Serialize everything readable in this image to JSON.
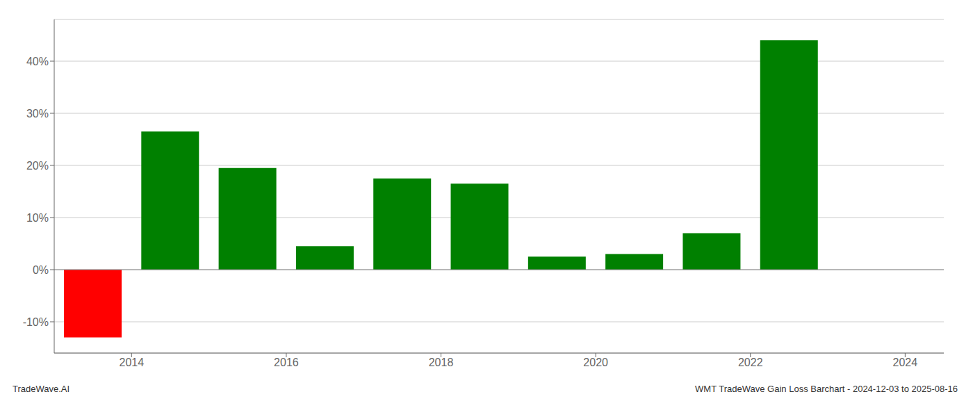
{
  "chart_data": {
    "type": "bar",
    "title": "WMT TradeWave Gain Loss Barchart - 2024-12-03 to 2025-08-16",
    "annotations": [
      "TradeWave.AI"
    ],
    "x": [
      2013.5,
      2014.5,
      2015.5,
      2016.5,
      2017.5,
      2018.5,
      2019.5,
      2020.5,
      2021.5,
      2022.5
    ],
    "values": [
      -13.0,
      26.5,
      19.5,
      4.5,
      17.5,
      16.5,
      2.5,
      3.0,
      7.0,
      44.0
    ],
    "colors": [
      "#ff0000",
      "#008000",
      "#008000",
      "#008000",
      "#008000",
      "#008000",
      "#008000",
      "#008000",
      "#008000",
      "#008000"
    ],
    "xlim": [
      2013.0,
      2024.5
    ],
    "xticks": [
      2014,
      2016,
      2018,
      2020,
      2022,
      2024
    ],
    "ylim": [
      -16,
      48
    ],
    "yticks": [
      {
        "value": -10,
        "label": "-10%"
      },
      {
        "value": 0,
        "label": "0%"
      },
      {
        "value": 10,
        "label": "10%"
      },
      {
        "value": 20,
        "label": "20%"
      },
      {
        "value": 30,
        "label": "30%"
      },
      {
        "value": 40,
        "label": "40%"
      }
    ],
    "grid": true
  }
}
